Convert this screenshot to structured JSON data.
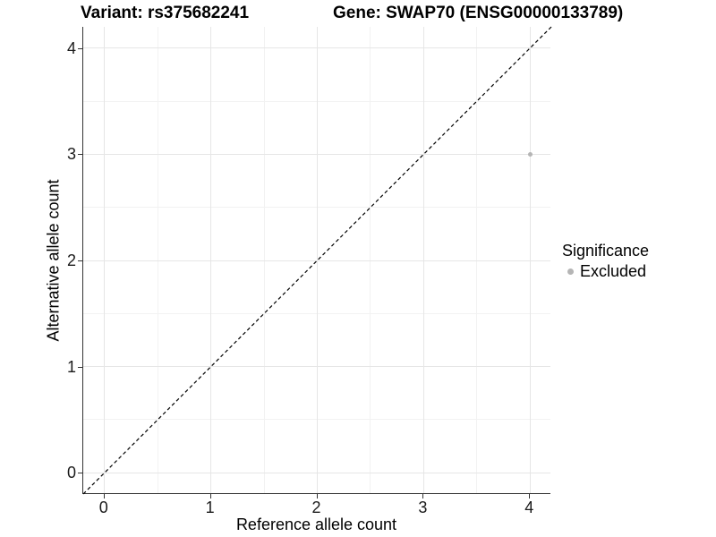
{
  "chart_data": {
    "type": "scatter",
    "title_left": "Variant: rs375682241",
    "title_right": "Gene: SWAP70 (ENSG00000133789)",
    "xlabel": "Reference allele count",
    "ylabel": "Alternative allele count",
    "xlim": [
      -0.2,
      4.2
    ],
    "ylim": [
      -0.2,
      4.2
    ],
    "x_ticks": [
      0,
      1,
      2,
      3,
      4
    ],
    "y_ticks": [
      0,
      1,
      2,
      3,
      4
    ],
    "x_minor_ticks": [
      0.5,
      1.5,
      2.5,
      3.5
    ],
    "y_minor_ticks": [
      0.5,
      1.5,
      2.5,
      3.5
    ],
    "grid": "major and minor gridlines, no top/right border",
    "series": [
      {
        "name": "Excluded",
        "color": "#b5b5b5",
        "points": [
          {
            "x": 4,
            "y": 3
          }
        ]
      }
    ],
    "reference_line": {
      "type": "identity",
      "slope": 1,
      "intercept": 0,
      "style": "dashed",
      "color": "#000000"
    },
    "legend": {
      "title": "Significance",
      "position": "right",
      "entries": [
        {
          "label": "Excluded",
          "color": "#b5b5b5"
        }
      ]
    },
    "colors": {
      "grid_major": "#e6e6e6",
      "grid_minor": "#f2f2f2",
      "axis": "#333333",
      "tick_text": "#1a1a1a",
      "title_text": "#000000",
      "point": "#b5b5b5"
    }
  }
}
